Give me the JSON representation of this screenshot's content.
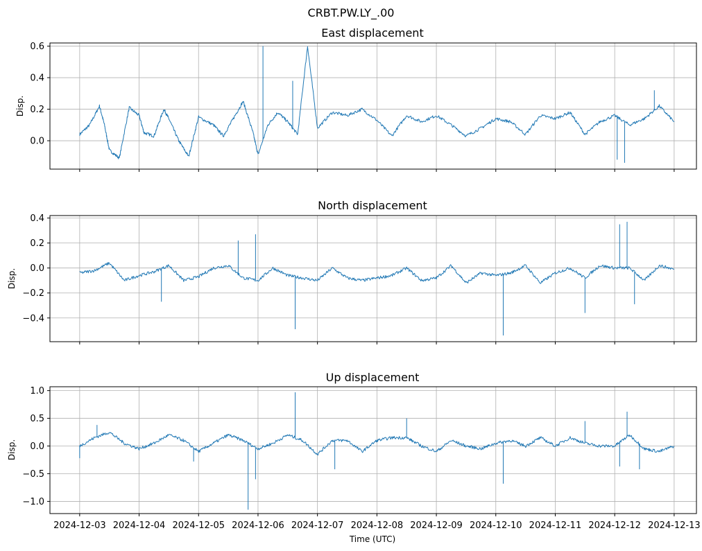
{
  "figure": {
    "suptitle": "CRBT.PW.LY_.00",
    "series_color": "#1f77b4"
  },
  "chart_data": [
    {
      "type": "line",
      "title": "East displacement",
      "xlabel": "",
      "ylabel": "Disp.",
      "ylim": [
        -0.18,
        0.62
      ],
      "yticks": [
        0.0,
        0.2,
        0.4,
        0.6
      ],
      "ytick_labels": [
        "0.0",
        "0.2",
        "0.4",
        "0.6"
      ],
      "xlim": [
        "2024-12-02T12:00",
        "2024-12-13T09:00"
      ],
      "xticks": [
        "2024-12-03",
        "2024-12-04",
        "2024-12-05",
        "2024-12-06",
        "2024-12-07",
        "2024-12-08",
        "2024-12-09",
        "2024-12-10",
        "2024-12-11",
        "2024-12-12",
        "2024-12-13"
      ],
      "xtick_labels_visible": false,
      "grid": true,
      "series": [
        {
          "x": [
            "2024-12-03T00:00",
            "2024-12-03T04:00",
            "2024-12-03T08:00",
            "2024-12-03T10:00",
            "2024-12-03T12:00",
            "2024-12-03T16:00",
            "2024-12-03T20:00",
            "2024-12-04T00:00",
            "2024-12-04T02:00",
            "2024-12-04T06:00",
            "2024-12-04T10:00",
            "2024-12-04T12:00",
            "2024-12-04T16:00",
            "2024-12-04T20:00",
            "2024-12-05T00:00",
            "2024-12-05T06:00",
            "2024-12-05T10:00",
            "2024-12-05T14:00",
            "2024-12-05T18:00",
            "2024-12-05T22:00",
            "2024-12-06T00:00",
            "2024-12-06T04:00",
            "2024-12-06T08:00",
            "2024-12-06T12:00",
            "2024-12-06T16:00",
            "2024-12-06T20:00",
            "2024-12-07T00:00",
            "2024-12-07T06:00",
            "2024-12-07T12:00",
            "2024-12-07T18:00",
            "2024-12-08T00:00",
            "2024-12-08T06:00",
            "2024-12-08T12:00",
            "2024-12-08T18:00",
            "2024-12-09T00:00",
            "2024-12-09T06:00",
            "2024-12-09T12:00",
            "2024-12-09T18:00",
            "2024-12-10T00:00",
            "2024-12-10T06:00",
            "2024-12-10T12:00",
            "2024-12-10T18:00",
            "2024-12-11T00:00",
            "2024-12-11T06:00",
            "2024-12-11T12:00",
            "2024-12-11T18:00",
            "2024-12-12T00:00",
            "2024-12-12T06:00",
            "2024-12-12T12:00",
            "2024-12-12T18:00",
            "2024-12-13T00:00"
          ],
          "values": [
            0.04,
            0.1,
            0.22,
            0.1,
            -0.06,
            -0.11,
            0.21,
            0.16,
            0.05,
            0.03,
            0.2,
            0.14,
            0.0,
            -0.1,
            0.15,
            0.1,
            0.03,
            0.14,
            0.25,
            0.05,
            -0.09,
            0.1,
            0.18,
            0.12,
            0.04,
            0.6,
            0.08,
            0.18,
            0.16,
            0.2,
            0.13,
            0.03,
            0.16,
            0.12,
            0.16,
            0.1,
            0.03,
            0.08,
            0.14,
            0.12,
            0.04,
            0.16,
            0.14,
            0.18,
            0.04,
            0.12,
            0.16,
            0.1,
            0.14,
            0.22,
            0.12
          ],
          "spikes": [
            {
              "x": "2024-12-06T02:00",
              "value": 0.6
            },
            {
              "x": "2024-12-06T14:00",
              "value": 0.38
            },
            {
              "x": "2024-12-12T01:00",
              "value": -0.12
            },
            {
              "x": "2024-12-12T04:00",
              "value": -0.14
            },
            {
              "x": "2024-12-12T16:00",
              "value": 0.32
            }
          ]
        }
      ]
    },
    {
      "type": "line",
      "title": "North displacement",
      "xlabel": "",
      "ylabel": "Disp.",
      "ylim": [
        -0.59,
        0.42
      ],
      "yticks": [
        -0.4,
        -0.2,
        0.0,
        0.2,
        0.4
      ],
      "ytick_labels": [
        "−0.4",
        "−0.2",
        "0.0",
        "0.2",
        "0.4"
      ],
      "xlim": [
        "2024-12-02T12:00",
        "2024-12-13T09:00"
      ],
      "xticks": [
        "2024-12-03",
        "2024-12-04",
        "2024-12-05",
        "2024-12-06",
        "2024-12-07",
        "2024-12-08",
        "2024-12-09",
        "2024-12-10",
        "2024-12-11",
        "2024-12-12",
        "2024-12-13"
      ],
      "xtick_labels_visible": false,
      "grid": true,
      "series": [
        {
          "x": [
            "2024-12-03T00:00",
            "2024-12-03T06:00",
            "2024-12-03T12:00",
            "2024-12-03T18:00",
            "2024-12-04T00:00",
            "2024-12-04T06:00",
            "2024-12-04T12:00",
            "2024-12-04T18:00",
            "2024-12-05T00:00",
            "2024-12-05T06:00",
            "2024-12-05T12:00",
            "2024-12-05T18:00",
            "2024-12-06T00:00",
            "2024-12-06T06:00",
            "2024-12-06T12:00",
            "2024-12-06T18:00",
            "2024-12-07T00:00",
            "2024-12-07T06:00",
            "2024-12-07T12:00",
            "2024-12-07T18:00",
            "2024-12-08T00:00",
            "2024-12-08T06:00",
            "2024-12-08T12:00",
            "2024-12-08T18:00",
            "2024-12-09T00:00",
            "2024-12-09T06:00",
            "2024-12-09T12:00",
            "2024-12-09T18:00",
            "2024-12-10T00:00",
            "2024-12-10T06:00",
            "2024-12-10T12:00",
            "2024-12-10T18:00",
            "2024-12-11T00:00",
            "2024-12-11T06:00",
            "2024-12-11T12:00",
            "2024-12-11T18:00",
            "2024-12-12T00:00",
            "2024-12-12T06:00",
            "2024-12-12T12:00",
            "2024-12-12T18:00",
            "2024-12-13T00:00"
          ],
          "values": [
            -0.04,
            -0.02,
            0.04,
            -0.1,
            -0.06,
            -0.03,
            0.02,
            -0.1,
            -0.07,
            0.0,
            0.02,
            -0.08,
            -0.1,
            0.0,
            -0.06,
            -0.08,
            -0.1,
            0.0,
            -0.08,
            -0.1,
            -0.08,
            -0.06,
            0.0,
            -0.1,
            -0.08,
            0.02,
            -0.12,
            -0.04,
            -0.06,
            -0.04,
            0.02,
            -0.12,
            -0.04,
            0.0,
            -0.08,
            0.02,
            0.0,
            0.0,
            -0.1,
            0.02,
            -0.01
          ],
          "spikes": [
            {
              "x": "2024-12-04T09:00",
              "value": -0.27
            },
            {
              "x": "2024-12-05T16:00",
              "value": 0.22
            },
            {
              "x": "2024-12-05T23:00",
              "value": 0.27
            },
            {
              "x": "2024-12-06T15:00",
              "value": -0.49
            },
            {
              "x": "2024-12-10T03:00",
              "value": -0.54
            },
            {
              "x": "2024-12-11T12:00",
              "value": -0.36
            },
            {
              "x": "2024-12-12T02:00",
              "value": 0.35
            },
            {
              "x": "2024-12-12T05:00",
              "value": 0.37
            },
            {
              "x": "2024-12-12T08:00",
              "value": -0.29
            }
          ]
        }
      ]
    },
    {
      "type": "line",
      "title": "Up displacement",
      "xlabel": "Time (UTC)",
      "ylabel": "Disp.",
      "ylim": [
        -1.22,
        1.07
      ],
      "yticks": [
        -1.0,
        -0.5,
        0.0,
        0.5,
        1.0
      ],
      "ytick_labels": [
        "−1.0",
        "−0.5",
        "0.0",
        "0.5",
        "1.0"
      ],
      "xlim": [
        "2024-12-02T12:00",
        "2024-12-13T09:00"
      ],
      "xticks": [
        "2024-12-03",
        "2024-12-04",
        "2024-12-05",
        "2024-12-06",
        "2024-12-07",
        "2024-12-08",
        "2024-12-09",
        "2024-12-10",
        "2024-12-11",
        "2024-12-12",
        "2024-12-13"
      ],
      "xtick_labels": [
        "2024-12-03",
        "2024-12-04",
        "2024-12-05",
        "2024-12-06",
        "2024-12-07",
        "2024-12-08",
        "2024-12-09",
        "2024-12-10",
        "2024-12-11",
        "2024-12-12",
        "2024-12-13"
      ],
      "xtick_labels_visible": true,
      "grid": true,
      "series": [
        {
          "x": [
            "2024-12-03T00:00",
            "2024-12-03T06:00",
            "2024-12-03T12:00",
            "2024-12-03T18:00",
            "2024-12-04T00:00",
            "2024-12-04T06:00",
            "2024-12-04T12:00",
            "2024-12-04T18:00",
            "2024-12-05T00:00",
            "2024-12-05T06:00",
            "2024-12-05T12:00",
            "2024-12-05T18:00",
            "2024-12-06T00:00",
            "2024-12-06T06:00",
            "2024-12-06T12:00",
            "2024-12-06T18:00",
            "2024-12-07T00:00",
            "2024-12-07T06:00",
            "2024-12-07T12:00",
            "2024-12-07T18:00",
            "2024-12-08T00:00",
            "2024-12-08T06:00",
            "2024-12-08T12:00",
            "2024-12-08T18:00",
            "2024-12-09T00:00",
            "2024-12-09T06:00",
            "2024-12-09T12:00",
            "2024-12-09T18:00",
            "2024-12-10T00:00",
            "2024-12-10T06:00",
            "2024-12-10T12:00",
            "2024-12-10T18:00",
            "2024-12-11T00:00",
            "2024-12-11T06:00",
            "2024-12-11T12:00",
            "2024-12-11T18:00",
            "2024-12-12T00:00",
            "2024-12-12T06:00",
            "2024-12-12T12:00",
            "2024-12-12T18:00",
            "2024-12-13T00:00"
          ],
          "values": [
            0.0,
            0.15,
            0.25,
            0.05,
            -0.05,
            0.05,
            0.2,
            0.1,
            -0.1,
            0.05,
            0.2,
            0.1,
            -0.05,
            0.05,
            0.2,
            0.1,
            -0.15,
            0.1,
            0.1,
            -0.1,
            0.1,
            0.15,
            0.15,
            0.0,
            -0.1,
            0.1,
            0.0,
            -0.05,
            0.05,
            0.1,
            0.0,
            0.15,
            0.0,
            0.15,
            0.05,
            0.0,
            0.0,
            0.2,
            -0.05,
            -0.1,
            0.0
          ],
          "spikes": [
            {
              "x": "2024-12-03T00:00",
              "value": -0.22
            },
            {
              "x": "2024-12-03T07:00",
              "value": 0.38
            },
            {
              "x": "2024-12-04T22:00",
              "value": -0.28
            },
            {
              "x": "2024-12-05T20:00",
              "value": -1.15
            },
            {
              "x": "2024-12-05T23:00",
              "value": -0.6
            },
            {
              "x": "2024-12-06T15:00",
              "value": 0.97
            },
            {
              "x": "2024-12-07T07:00",
              "value": -0.42
            },
            {
              "x": "2024-12-08T12:00",
              "value": 0.5
            },
            {
              "x": "2024-12-10T03:00",
              "value": -0.68
            },
            {
              "x": "2024-12-11T12:00",
              "value": 0.45
            },
            {
              "x": "2024-12-12T02:00",
              "value": -0.37
            },
            {
              "x": "2024-12-12T05:00",
              "value": 0.62
            },
            {
              "x": "2024-12-12T10:00",
              "value": -0.42
            }
          ]
        }
      ]
    }
  ]
}
